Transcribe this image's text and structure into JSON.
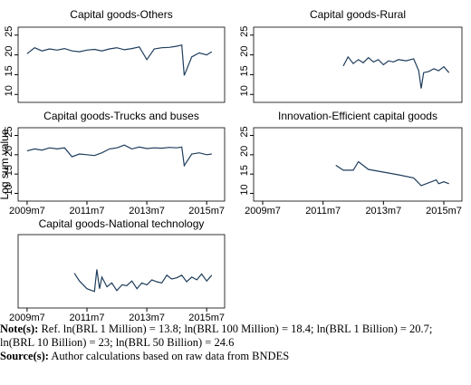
{
  "chart_data": [
    {
      "type": "line",
      "title": "Capital goods-Others",
      "color": "#1f3d5c",
      "x": [
        2009.5,
        2009.75,
        2010,
        2010.25,
        2010.5,
        2010.75,
        2011,
        2011.25,
        2011.5,
        2011.75,
        2012,
        2012.25,
        2012.5,
        2012.75,
        2013,
        2013.25,
        2013.5,
        2013.75,
        2014,
        2014.25,
        2014.5,
        2014.67,
        2014.75,
        2015,
        2015.25,
        2015.5,
        2015.67
      ],
      "values": [
        20.3,
        21.8,
        21,
        21.5,
        21.2,
        21.6,
        21,
        20.8,
        21.2,
        21.4,
        21,
        21.5,
        21.8,
        21.3,
        21.6,
        22,
        18.8,
        21.5,
        21.8,
        21.9,
        22.2,
        22.5,
        14.8,
        19.5,
        20.5,
        20,
        20.8
      ],
      "xlim": [
        2009.2,
        2016.1
      ],
      "ylim": [
        8,
        27
      ],
      "yticks": [
        10,
        15,
        20,
        25
      ]
    },
    {
      "type": "line",
      "title": "Capital goods-Rural",
      "color": "#1f3d5c",
      "x": [
        2012.17,
        2012.33,
        2012.5,
        2012.67,
        2012.83,
        2013,
        2013.17,
        2013.33,
        2013.5,
        2013.67,
        2013.83,
        2014,
        2014.25,
        2014.5,
        2014.67,
        2014.75,
        2014.83,
        2015,
        2015.17,
        2015.33,
        2015.5,
        2015.67
      ],
      "values": [
        17.2,
        19.5,
        17.8,
        18.8,
        18,
        19.3,
        18.2,
        18.8,
        17.5,
        18.5,
        18.2,
        18.8,
        18.5,
        19,
        16,
        11.5,
        15.5,
        15.8,
        16.5,
        16,
        17,
        15.5
      ],
      "xlim": [
        2009.2,
        2016.1
      ],
      "ylim": [
        8,
        27
      ],
      "yticks": [
        10,
        15,
        20,
        25
      ]
    },
    {
      "type": "line",
      "title": "Capital goods-Trucks and buses",
      "ylabel": "Log sum value",
      "color": "#1f3d5c",
      "x": [
        2009.5,
        2009.75,
        2010,
        2010.25,
        2010.5,
        2010.75,
        2011,
        2011.25,
        2011.5,
        2011.75,
        2012,
        2012.25,
        2012.5,
        2012.75,
        2013,
        2013.25,
        2013.5,
        2013.75,
        2014,
        2014.25,
        2014.5,
        2014.67,
        2014.75,
        2015,
        2015.25,
        2015.5,
        2015.67
      ],
      "values": [
        21,
        21.5,
        21.2,
        21.8,
        21.5,
        21.8,
        19.5,
        20.2,
        20,
        19.8,
        20.5,
        21.5,
        21.8,
        22.5,
        21.5,
        22,
        21.6,
        21.8,
        21.7,
        21.9,
        21.8,
        22,
        17.2,
        20.2,
        20.5,
        20,
        20.2
      ],
      "xlim": [
        2009.2,
        2016.1
      ],
      "ylim": [
        8,
        27
      ],
      "yticks": [
        10,
        15,
        20,
        25
      ],
      "xticks": [
        {
          "value": 2009.5,
          "label": "2009m7"
        },
        {
          "value": 2011.5,
          "label": "2011m7"
        },
        {
          "value": 2013.5,
          "label": "2013m7"
        },
        {
          "value": 2015.5,
          "label": "2015m7"
        }
      ]
    },
    {
      "type": "line",
      "title": "Innovation-Efficient capital goods",
      "color": "#1f3d5c",
      "x": [
        2011.92,
        2012.17,
        2012.5,
        2012.67,
        2013,
        2013.5,
        2014,
        2014.5,
        2014.75,
        2015.25,
        2015.33,
        2015.5,
        2015.67
      ],
      "values": [
        17.3,
        16,
        16,
        18.2,
        16.2,
        15.5,
        14.8,
        14,
        12,
        13.5,
        12.5,
        13,
        12.5
      ],
      "xlim": [
        2009.2,
        2016.1
      ],
      "ylim": [
        8,
        27
      ],
      "yticks": [
        10,
        15,
        20,
        25
      ],
      "xticks": [
        {
          "value": 2009.5,
          "label": "2009m7"
        },
        {
          "value": 2011.5,
          "label": "2011m7"
        },
        {
          "value": 2013.5,
          "label": "2013m7"
        },
        {
          "value": 2015.5,
          "label": "2015m7"
        }
      ]
    },
    {
      "type": "line",
      "title": "Capital goods-National technology",
      "color": "#1f3d5c",
      "x": [
        2011.08,
        2011.25,
        2011.5,
        2011.67,
        2011.75,
        2011.83,
        2011.92,
        2012,
        2012.17,
        2012.33,
        2012.5,
        2012.67,
        2012.83,
        2013,
        2013.17,
        2013.33,
        2013.5,
        2013.67,
        2013.83,
        2014,
        2014.17,
        2014.33,
        2014.5,
        2014.67,
        2014.83,
        2015,
        2015.17,
        2015.33,
        2015.5,
        2015.67
      ],
      "values": [
        17,
        15,
        13,
        12.5,
        12.3,
        18,
        13,
        16,
        13.5,
        14.5,
        12.5,
        14,
        13.8,
        15,
        13,
        14.5,
        14,
        15.3,
        14.8,
        14.5,
        16.5,
        15.5,
        15.8,
        16.5,
        14.8,
        16,
        15.3,
        16.8,
        15,
        16.5
      ],
      "xlim": [
        2009.2,
        2016.1
      ],
      "ylim": [
        8,
        27
      ],
      "xticks": [
        {
          "value": 2009.5,
          "label": "2009m7"
        },
        {
          "value": 2011.5,
          "label": "2011m7"
        },
        {
          "value": 2013.5,
          "label": "2013m7"
        },
        {
          "value": 2015.5,
          "label": "2015m7"
        }
      ]
    }
  ],
  "notes": {
    "note_label": "Note(s):",
    "note": "Ref. ln(BRL 1 Million) = 13.8; ln(BRL 100 Million) = 18.4; ln(BRL 1 Billion) = 20.7; ln(BRL 10 Billion) = 23; ln(BRL 50 Billion) = 24.6",
    "source_label": "Source(s):",
    "source": "Author calculations based on raw data from BNDES"
  }
}
